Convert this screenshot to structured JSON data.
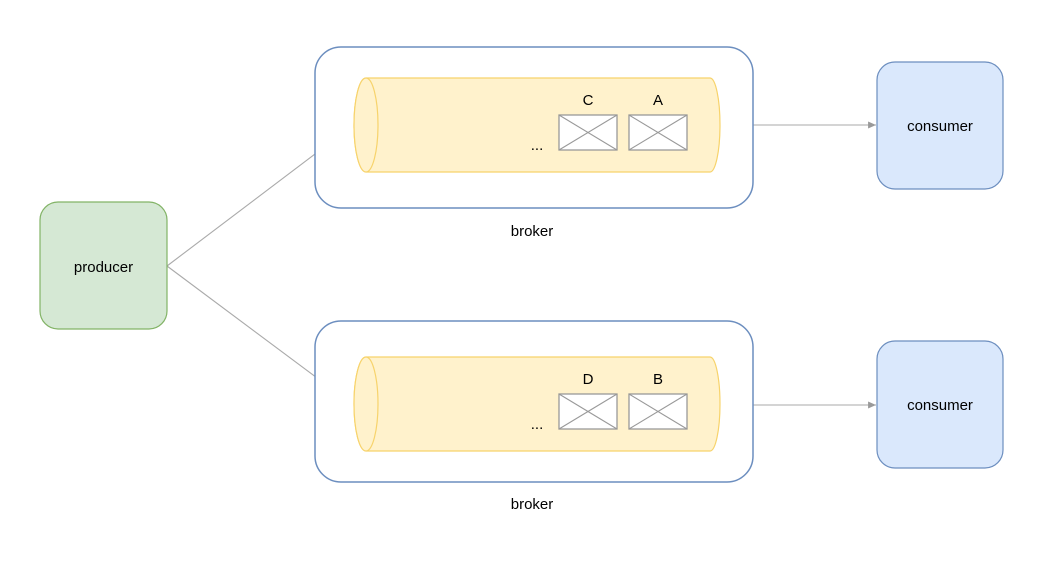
{
  "producer": {
    "label": "producer",
    "fill": "#d5e8d4",
    "stroke": "#82b366"
  },
  "consumers": [
    {
      "label": "consumer"
    },
    {
      "label": "consumer"
    }
  ],
  "consumer_style": {
    "fill": "#dae8fc",
    "stroke": "#6c8ebf"
  },
  "brokers": [
    {
      "label": "broker",
      "messages": [
        "C",
        "A"
      ],
      "ellipsis": "..."
    },
    {
      "label": "broker",
      "messages": [
        "D",
        "B"
      ],
      "ellipsis": "..."
    }
  ],
  "broker_style": {
    "stroke": "#6c8ebf",
    "fill": "#ffffff"
  },
  "queue_style": {
    "fill": "#fff2cc",
    "stroke": "#f7d36b"
  },
  "message_style": {
    "stroke": "#999999",
    "fill": "#ffffff"
  },
  "arrow_color": "#aaaaaa"
}
